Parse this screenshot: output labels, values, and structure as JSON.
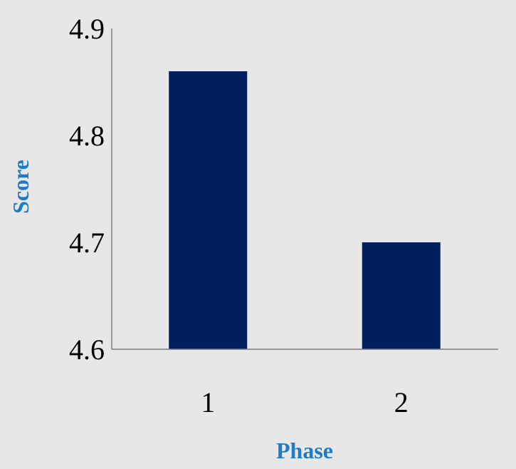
{
  "chart_data": {
    "type": "bar",
    "title": "",
    "xlabel": "Phase",
    "ylabel": "Score",
    "categories": [
      "1",
      "2"
    ],
    "values": [
      4.86,
      4.7
    ],
    "ylim": [
      4.6,
      4.9
    ],
    "y_ticks": [
      "4.6",
      "4.7",
      "4.8",
      "4.9"
    ],
    "y_tick_values": [
      4.6,
      4.7,
      4.8,
      4.9
    ],
    "grid": false,
    "legend": "none",
    "colors": {
      "bar": "#001f5c",
      "axis_title": "#1f7bc6",
      "axis_line": "#7f7f7f",
      "background": "#e7e7e7"
    }
  }
}
